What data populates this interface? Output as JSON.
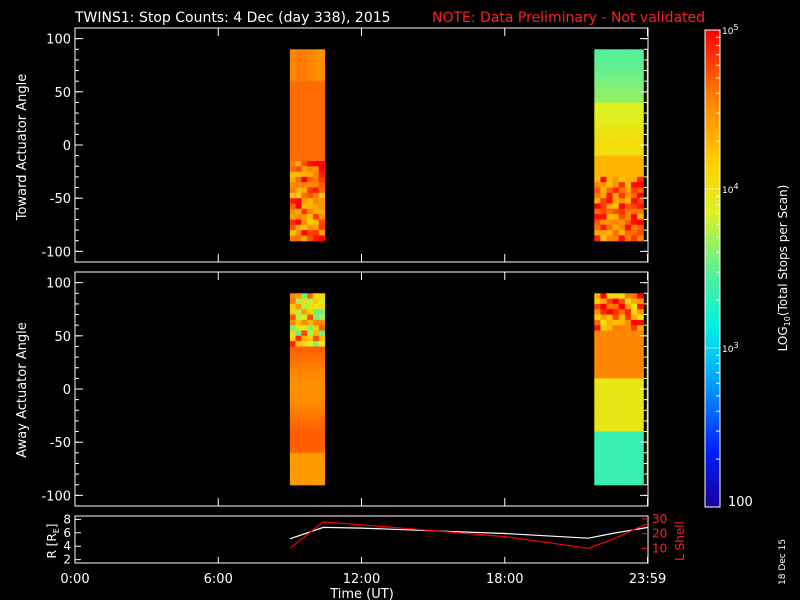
{
  "title": {
    "main": "TWINS1: Stop Counts:  4 Dec (day 338), 2015",
    "note": "NOTE: Data Preliminary - Not validated",
    "note_color": "#ff2020"
  },
  "stamp": "18 Dec 15",
  "colors": {
    "background": "#000000",
    "axis": "#ffffff",
    "r_line": "#ffffff",
    "lshell_line": "#ff0000"
  },
  "chart_data": [
    {
      "type": "heatmap",
      "ylabel": "Toward Actuator Angle",
      "ylim": [
        -110,
        110
      ],
      "yticks": [
        100,
        50,
        0,
        -50,
        -100
      ],
      "xlim": [
        0,
        24
      ],
      "grid": false,
      "blocks": [
        {
          "x_start": 9.0,
          "x_end": 10.45,
          "angle_range": [
            -90,
            90
          ],
          "dominant_log10": 4.6,
          "description_colors": "orange/yellow"
        },
        {
          "x_start": 21.75,
          "x_end": 23.8,
          "angle_range": [
            -90,
            90
          ],
          "dominant_log10": 3.6,
          "description_colors": "cyan/green upper, orange lower"
        }
      ]
    },
    {
      "type": "heatmap",
      "ylabel": "Away Actuator Angle",
      "ylim": [
        -110,
        110
      ],
      "yticks": [
        100,
        50,
        0,
        -50,
        -100
      ],
      "xlim": [
        0,
        24
      ],
      "grid": false,
      "blocks": [
        {
          "x_start": 9.0,
          "x_end": 10.45,
          "angle_range": [
            -90,
            90
          ],
          "dominant_log10": 4.5,
          "description_colors": "orange/yellow"
        },
        {
          "x_start": 21.75,
          "x_end": 23.8,
          "angle_range": [
            -90,
            90
          ],
          "dominant_log10": 3.5,
          "description_colors": "orange upper, cyan lower"
        }
      ]
    },
    {
      "type": "line",
      "xlabel": "Time (UT)",
      "xticks": [
        "0:00",
        "6:00",
        "12:00",
        "18:00",
        "23:59"
      ],
      "xtick_values": [
        0,
        6,
        12,
        18,
        23.98
      ],
      "xlim": [
        0,
        24
      ],
      "ylabel": "R [R",
      "ylabel_sub": "E",
      "ylabel_close": "]",
      "ylim": [
        1.5,
        8.5
      ],
      "yticks": [
        2,
        4,
        6,
        8
      ],
      "y2label": "L Shell",
      "y2lim": [
        0,
        32
      ],
      "y2ticks": [
        10,
        20,
        30
      ],
      "series": [
        {
          "axis": "left",
          "x": [
            9.0,
            10.4,
            12.0,
            15.0,
            18.0,
            21.5,
            22.5,
            24.0
          ],
          "values": [
            5.1,
            6.8,
            6.7,
            6.3,
            5.9,
            5.2,
            5.9,
            6.8
          ]
        },
        {
          "axis": "right",
          "x": [
            9.0,
            10.4,
            12.0,
            15.0,
            18.0,
            21.5,
            22.5,
            24.0
          ],
          "values": [
            10,
            28,
            26,
            22,
            18,
            10,
            16,
            27
          ]
        }
      ]
    }
  ],
  "colorbar": {
    "label_prefix": "LOG",
    "label_sub": "10",
    "label_suffix": "(Total Stops per Scan)",
    "scale": "log",
    "range": [
      100,
      100000
    ],
    "tick_labels": [
      {
        "base": "10",
        "exp": "5",
        "value_log": 5
      },
      {
        "base": "10",
        "exp": "4",
        "value_log": 4
      },
      {
        "base": "10",
        "exp": "3",
        "value_log": 3
      }
    ],
    "bottom_label": "100"
  }
}
